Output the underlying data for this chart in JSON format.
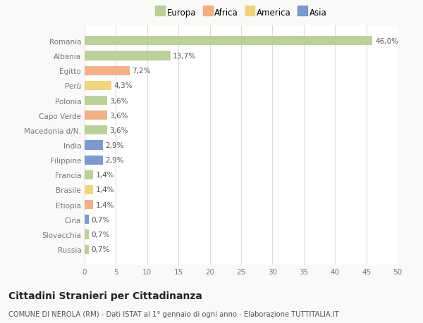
{
  "countries": [
    "Romania",
    "Albania",
    "Egitto",
    "Perù",
    "Polonia",
    "Capo Verde",
    "Macedonia d/N.",
    "India",
    "Filippine",
    "Francia",
    "Brasile",
    "Etiopia",
    "Cina",
    "Slovacchia",
    "Russia"
  ],
  "values": [
    46.0,
    13.7,
    7.2,
    4.3,
    3.6,
    3.6,
    3.6,
    2.9,
    2.9,
    1.4,
    1.4,
    1.4,
    0.7,
    0.7,
    0.7
  ],
  "labels": [
    "46,0%",
    "13,7%",
    "7,2%",
    "4,3%",
    "3,6%",
    "3,6%",
    "3,6%",
    "2,9%",
    "2,9%",
    "1,4%",
    "1,4%",
    "1,4%",
    "0,7%",
    "0,7%",
    "0,7%"
  ],
  "continents": [
    "Europa",
    "Europa",
    "Africa",
    "America",
    "Europa",
    "Africa",
    "Europa",
    "Asia",
    "Asia",
    "Europa",
    "America",
    "Africa",
    "Asia",
    "Europa",
    "Europa"
  ],
  "continent_colors": {
    "Europa": "#b5cc8e",
    "Africa": "#f0a878",
    "America": "#f0d070",
    "Asia": "#6e8fc9"
  },
  "legend_entries": [
    "Europa",
    "Africa",
    "America",
    "Asia"
  ],
  "legend_colors": [
    "#b5cc8e",
    "#f0a878",
    "#f0d070",
    "#6e8fc9"
  ],
  "xlim": [
    0,
    50
  ],
  "xticks": [
    0,
    5,
    10,
    15,
    20,
    25,
    30,
    35,
    40,
    45,
    50
  ],
  "title": "Cittadini Stranieri per Cittadinanza",
  "subtitle": "COMUNE DI NEROLA (RM) - Dati ISTAT al 1° gennaio di ogni anno - Elaborazione TUTTITALIA.IT",
  "background_color": "#f9f9f7",
  "bar_background": "#ffffff",
  "grid_color": "#dddddd",
  "label_fontsize": 7.5,
  "tick_fontsize": 7.5,
  "title_fontsize": 10,
  "subtitle_fontsize": 7.2
}
